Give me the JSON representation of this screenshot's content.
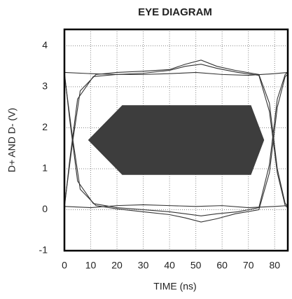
{
  "chart_data": {
    "type": "line",
    "title": "EYE DIAGRAM",
    "x_label": "TIME (ns)",
    "y_label": "D+ AND D- (V)",
    "xlim": [
      0,
      85
    ],
    "xticks": [
      0,
      10,
      20,
      30,
      40,
      50,
      60,
      70,
      80
    ],
    "ylim": [
      -1,
      4.4
    ],
    "yticks": [
      -1,
      0,
      1,
      2,
      3,
      4
    ],
    "grid": true,
    "series": [
      {
        "color": "#333333",
        "x": [
          0,
          3,
          6,
          12,
          20,
          30,
          40,
          46,
          52,
          58,
          65,
          74,
          78,
          81,
          84,
          85
        ],
        "values": [
          0.1,
          1.6,
          2.9,
          3.3,
          3.35,
          3.38,
          3.42,
          3.55,
          3.65,
          3.5,
          3.4,
          3.3,
          2.6,
          1.0,
          0.15,
          0.1
        ]
      },
      {
        "color": "#333333",
        "x": [
          0,
          2,
          5,
          11,
          20,
          30,
          40,
          46,
          52,
          58,
          66,
          74,
          78,
          81,
          84,
          85
        ],
        "values": [
          0.05,
          1.2,
          2.7,
          3.25,
          3.3,
          3.33,
          3.4,
          3.5,
          3.55,
          3.45,
          3.35,
          3.28,
          2.4,
          0.9,
          0.1,
          0.05
        ]
      },
      {
        "color": "#333333",
        "x": [
          0,
          3,
          6,
          12,
          20,
          30,
          40,
          46,
          52,
          58,
          65,
          74,
          78,
          81,
          84,
          85
        ],
        "values": [
          3.3,
          1.8,
          0.5,
          0.1,
          0.02,
          -0.05,
          -0.12,
          -0.2,
          -0.3,
          -0.22,
          -0.1,
          0.0,
          0.9,
          2.5,
          3.25,
          3.3
        ]
      },
      {
        "color": "#333333",
        "x": [
          0,
          2,
          5,
          11,
          20,
          30,
          40,
          46,
          52,
          58,
          66,
          74,
          78,
          81,
          84,
          85
        ],
        "values": [
          3.35,
          2.2,
          0.7,
          0.15,
          0.05,
          0.0,
          -0.05,
          -0.1,
          -0.15,
          -0.1,
          -0.05,
          0.05,
          1.1,
          2.7,
          3.3,
          3.35
        ]
      },
      {
        "color": "#333333",
        "x": [
          0,
          10,
          20,
          30,
          40,
          50,
          60,
          70,
          80,
          85
        ],
        "values": [
          3.35,
          3.32,
          3.3,
          3.3,
          3.32,
          3.35,
          3.3,
          3.28,
          3.32,
          3.35
        ]
      },
      {
        "color": "#333333",
        "x": [
          0,
          10,
          20,
          30,
          40,
          50,
          60,
          70,
          80,
          85
        ],
        "values": [
          0.08,
          0.05,
          0.1,
          0.12,
          0.1,
          0.08,
          0.1,
          0.05,
          0.08,
          0.1
        ]
      }
    ],
    "mask": {
      "color": "#3d3d3d",
      "x": [
        9,
        22,
        71,
        76,
        71,
        22
      ],
      "y": [
        1.7,
        2.55,
        2.55,
        1.7,
        0.85,
        0.85
      ]
    }
  }
}
